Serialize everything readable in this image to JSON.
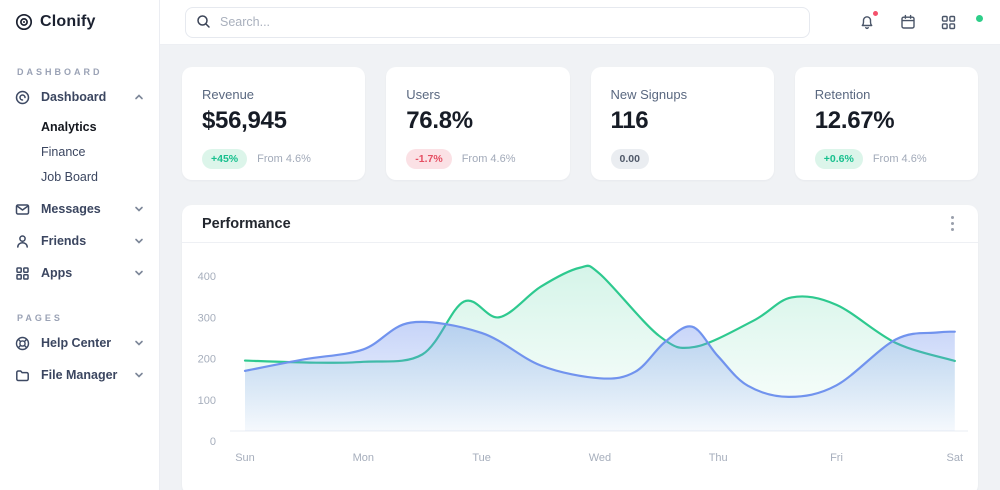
{
  "brand": {
    "name": "Clonify"
  },
  "sidebar": {
    "sections": [
      {
        "label": "DASHBOARD",
        "items": [
          {
            "label": "Dashboard",
            "icon": "dashboard-icon",
            "expanded": true,
            "children": [
              "Analytics",
              "Finance",
              "Job Board"
            ],
            "active_child": "Analytics"
          },
          {
            "label": "Messages",
            "icon": "mail-icon"
          },
          {
            "label": "Friends",
            "icon": "user-icon"
          },
          {
            "label": "Apps",
            "icon": "apps-icon"
          }
        ]
      },
      {
        "label": "PAGES",
        "items": [
          {
            "label": "Help Center",
            "icon": "help-icon"
          },
          {
            "label": "File Manager",
            "icon": "folder-icon"
          }
        ]
      }
    ]
  },
  "header": {
    "search_placeholder": "Search...",
    "has_notification_dot": true,
    "user_status": "online"
  },
  "cards": [
    {
      "label": "Revenue",
      "value": "$56,945",
      "badge": "+45%",
      "badge_type": "positive",
      "note": "From 4.6%"
    },
    {
      "label": "Users",
      "value": "76.8%",
      "badge": "-1.7%",
      "badge_type": "negative",
      "note": "From 4.6%"
    },
    {
      "label": "New Signups",
      "value": "116",
      "badge": "0.00",
      "badge_type": "neutral",
      "note": ""
    },
    {
      "label": "Retention",
      "value": "12.67%",
      "badge": "+0.6%",
      "badge_type": "positive",
      "note": "From 4.6%"
    }
  ],
  "chart_data": {
    "type": "area",
    "title": "Performance",
    "categories": [
      "Sun",
      "Mon",
      "Tue",
      "Wed",
      "Thu",
      "Fri",
      "Sat"
    ],
    "y_ticks": [
      0,
      100,
      200,
      300,
      400
    ],
    "ylim": [
      0,
      450
    ],
    "grid": false,
    "legend": "none",
    "series": [
      {
        "name": "green",
        "color": "#2ec98f",
        "fill_from": "rgba(46,201,143,0.20)",
        "fill_to": "rgba(46,201,143,0.01)",
        "x": [
          0,
          0.55,
          1,
          1.5,
          1.85,
          2.15,
          2.5,
          2.83,
          3,
          3.5,
          3.8,
          4.3,
          4.62,
          5,
          5.5,
          6
        ],
        "values": [
          195,
          190,
          192,
          210,
          338,
          300,
          374,
          420,
          405,
          255,
          228,
          292,
          348,
          330,
          238,
          194
        ]
      },
      {
        "name": "blue",
        "color": "#7193ee",
        "fill_from": "rgba(113,147,238,0.40)",
        "fill_to": "rgba(113,147,238,0.05)",
        "x": [
          0,
          0.5,
          1,
          1.4,
          2,
          2.5,
          3,
          3.3,
          3.55,
          3.78,
          4,
          4.25,
          4.6,
          5,
          5.5,
          5.85,
          6
        ],
        "values": [
          170,
          198,
          222,
          287,
          262,
          183,
          152,
          168,
          240,
          277,
          205,
          134,
          107,
          135,
          246,
          263,
          265
        ]
      }
    ]
  }
}
